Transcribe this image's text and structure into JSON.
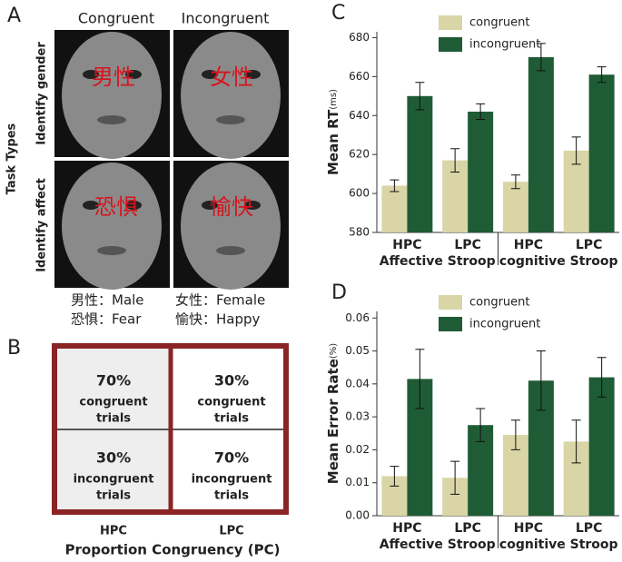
{
  "panel_a": {
    "label": "A",
    "columns": [
      "Congruent",
      "Incongruent"
    ],
    "rows": [
      "Identify gender",
      "Identify affect"
    ],
    "axis_label": "Task Types",
    "words": [
      "男性",
      "女性",
      "恐惧",
      "愉快"
    ],
    "legend": [
      "男性：Male",
      "女性：Female",
      "恐惧：Fear",
      "愉快：Happy"
    ]
  },
  "panel_b": {
    "label": "B",
    "cells": [
      {
        "percent": "70%",
        "lines": [
          "congruent",
          "trials"
        ]
      },
      {
        "percent": "30%",
        "lines": [
          "congruent",
          "trials"
        ]
      },
      {
        "percent": "30%",
        "lines": [
          "incongruent",
          "trials"
        ]
      },
      {
        "percent": "70%",
        "lines": [
          "incongruent",
          "trials"
        ]
      }
    ],
    "columns": [
      "HPC",
      "LPC"
    ],
    "axis_label": "Proportion Congruency (PC)"
  },
  "chart_data": [
    {
      "type": "bar",
      "panel": "C",
      "y_label": "Mean RT",
      "y_unit": "(ms)",
      "categories": [
        "HPC",
        "LPC",
        "HPC",
        "LPC"
      ],
      "groups": [
        "Affective Stroop",
        "cognitive Stroop"
      ],
      "ylim": [
        580,
        683
      ],
      "yticks": [
        580,
        600,
        620,
        640,
        660,
        680
      ],
      "legend": "upper left",
      "series": [
        {
          "name": "congruent",
          "color": "#d9d5a6",
          "values": [
            604,
            617,
            606,
            622
          ],
          "errors": [
            3,
            6,
            3.5,
            7
          ]
        },
        {
          "name": "incongruent",
          "color": "#1f5c36",
          "values": [
            650,
            642,
            670,
            661
          ],
          "errors": [
            7,
            4,
            7,
            4
          ]
        }
      ]
    },
    {
      "type": "bar",
      "panel": "D",
      "y_label": "Mean Error Rate",
      "y_unit": "(%)",
      "categories": [
        "HPC",
        "LPC",
        "HPC",
        "LPC"
      ],
      "groups": [
        "Affective Stroop",
        "cognitive Stroop"
      ],
      "ylim": [
        0,
        0.062
      ],
      "yticks": [
        {
          "value": 0,
          "label": "0.00"
        },
        {
          "value": 0.01,
          "label": "0.01"
        },
        {
          "value": 0.02,
          "label": "0.02"
        },
        {
          "value": 0.03,
          "label": "0.03"
        },
        {
          "value": 0.04,
          "label": "0.04"
        },
        {
          "value": 0.05,
          "label": "0.05"
        },
        {
          "value": 0.06,
          "label": "0.06"
        }
      ],
      "legend": "upper left",
      "series": [
        {
          "name": "congruent",
          "color": "#d9d5a6",
          "values": [
            0.012,
            0.0115,
            0.0245,
            0.0225
          ],
          "errors": [
            0.003,
            0.005,
            0.0045,
            0.0065
          ]
        },
        {
          "name": "incongruent",
          "color": "#1f5c36",
          "values": [
            0.0415,
            0.0275,
            0.041,
            0.042
          ],
          "errors": [
            0.009,
            0.005,
            0.009,
            0.006
          ]
        }
      ]
    }
  ]
}
